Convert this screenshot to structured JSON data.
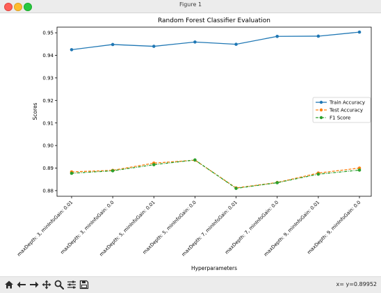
{
  "window": {
    "title": "Figure 1"
  },
  "toolbar": {
    "buttons": [
      {
        "name": "home-icon"
      },
      {
        "name": "back-arrow-icon"
      },
      {
        "name": "forward-arrow-icon"
      },
      {
        "name": "pan-icon"
      },
      {
        "name": "zoom-icon"
      },
      {
        "name": "configure-subplots-icon"
      },
      {
        "name": "save-icon"
      }
    ],
    "coord_readout": "x= y=0.89952"
  },
  "colors": {
    "train": "#1f77b4",
    "test": "#ff7f0e",
    "f1": "#2ca02c"
  },
  "chart_data": {
    "type": "line",
    "title": "Random Forest Classifier Evaluation",
    "xlabel": "Hyperparameters",
    "ylabel": "Scores",
    "categories": [
      "maxDepth: 3, minInfoGain: 0.01",
      "maxDepth: 3, minInfoGain: 0.0",
      "maxDepth: 5, minInfoGain: 0.01",
      "maxDepth: 5, minInfoGain: 0.0",
      "maxDepth: 7, minInfoGain: 0.01",
      "maxDepth: 7, minInfoGain: 0.0",
      "maxDepth: 9, minInfoGain: 0.01",
      "maxDepth: 9, minInfoGain: 0.0"
    ],
    "yticks": [
      "0.88",
      "0.89",
      "0.90",
      "0.91",
      "0.92",
      "0.93",
      "0.94",
      "0.95"
    ],
    "ylim": [
      0.8775,
      0.9525
    ],
    "grid": false,
    "legend_position": "center-right",
    "series": [
      {
        "name": "Train Accuracy",
        "style": "solid",
        "values": [
          0.9425,
          0.9448,
          0.944,
          0.9459,
          0.9449,
          0.9484,
          0.9485,
          0.9503
        ]
      },
      {
        "name": "Test Accuracy",
        "style": "dashed",
        "values": [
          0.8883,
          0.889,
          0.8922,
          0.8935,
          0.8812,
          0.8836,
          0.8878,
          0.89
        ]
      },
      {
        "name": "F1 Score",
        "style": "dashdot",
        "values": [
          0.8877,
          0.8888,
          0.8915,
          0.8936,
          0.881,
          0.8835,
          0.8873,
          0.8891
        ]
      }
    ]
  }
}
